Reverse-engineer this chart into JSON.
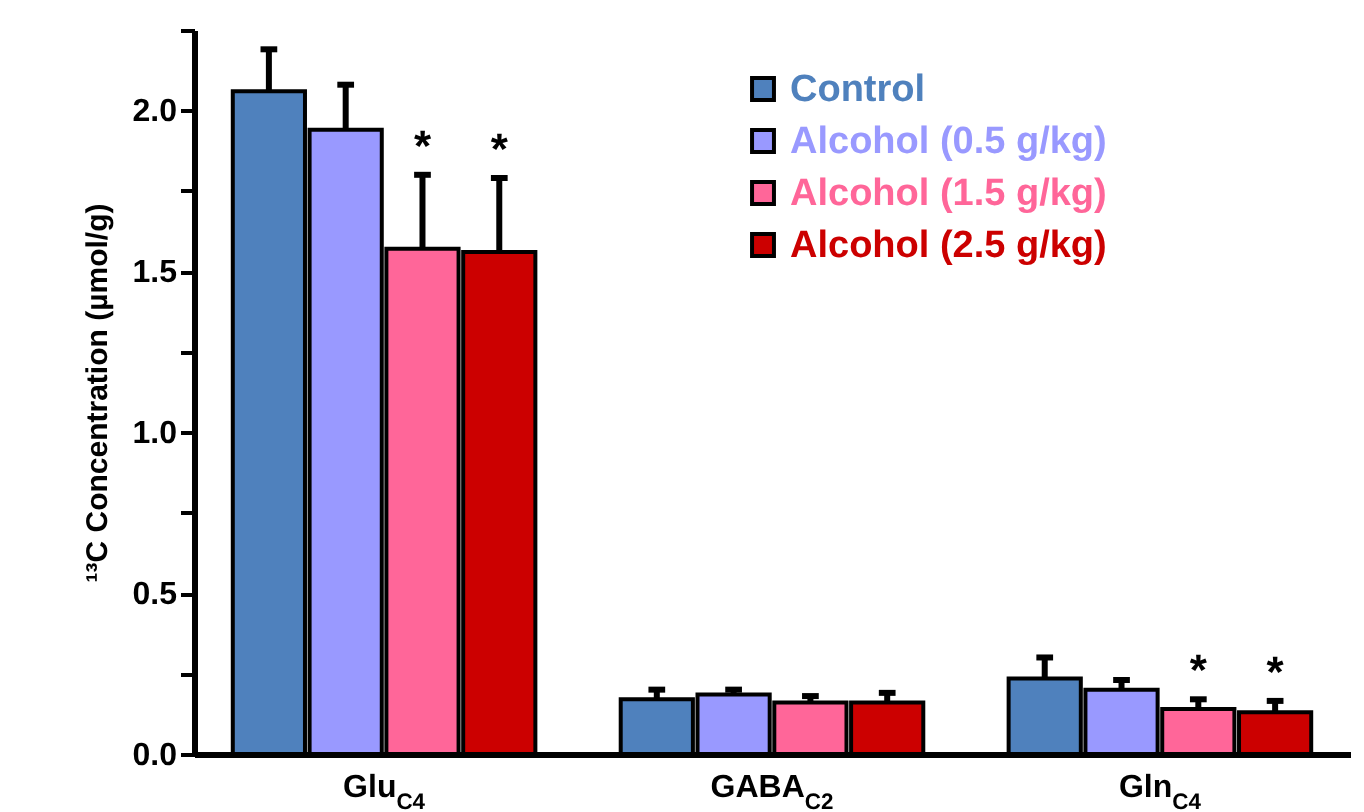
{
  "chart_data": {
    "type": "bar",
    "ylabel": "¹³C Concentration (µmol/g)",
    "categories": [
      "Glu$_{C4}$",
      "GABA$_{C2}$",
      "Gln$_{C4}$"
    ],
    "series": [
      {
        "name": "Control",
        "color": "#4f81bd",
        "values": [
          2.06,
          0.17,
          0.235
        ],
        "errors": [
          [
            2.06,
            2.19
          ],
          [
            0.17,
            0.2
          ],
          [
            0.235,
            0.3
          ]
        ]
      },
      {
        "name": "Alcohol (0.5 g/kg)",
        "color": "#9999ff",
        "values": [
          1.94,
          0.185,
          0.2
        ],
        "errors": [
          [
            1.94,
            2.08
          ],
          [
            0.185,
            0.2
          ],
          [
            0.2,
            0.23
          ]
        ]
      },
      {
        "name": "Alcohol (1.5 g/kg)",
        "color": "#ff6699",
        "values": [
          1.57,
          0.16,
          0.14
        ],
        "errors": [
          [
            1.57,
            1.8
          ],
          [
            0.16,
            0.18
          ],
          [
            0.14,
            0.17
          ]
        ]
      },
      {
        "name": "Alcohol (2.5 g/kg)",
        "color": "#cc0000",
        "values": [
          1.56,
          0.16,
          0.13
        ],
        "errors": [
          [
            1.56,
            1.79
          ],
          [
            0.16,
            0.19
          ],
          [
            0.13,
            0.165
          ]
        ]
      }
    ],
    "annotations": [
      {
        "text": "*",
        "x": "Glu$_{C4}$",
        "y": 1.8
      },
      {
        "text": "*",
        "x": "Glu$_{C4}$",
        "y": 1.79
      },
      {
        "text": "*",
        "x": "Gln$_{C4}$",
        "y": 0.17
      },
      {
        "text": "*",
        "x": "Gln$_{C4}$",
        "y": 0.165
      }
    ],
    "ylim": [
      0,
      2.25
    ],
    "yticks": [
      {
        "value": 0,
        "label": "0.0"
      },
      {
        "value": 0.25,
        "label": null
      },
      {
        "value": 0.5,
        "label": "0.5"
      },
      {
        "value": 0.75,
        "label": null
      },
      {
        "value": 1,
        "label": "1.0"
      },
      {
        "value": 1.25,
        "label": null
      },
      {
        "value": 1.5,
        "label": "1.5"
      },
      {
        "value": 1.75,
        "label": null
      },
      {
        "value": 2,
        "label": "2.0"
      },
      {
        "value": 2.25,
        "label": null
      }
    ],
    "grid": false,
    "legend": "top right"
  }
}
